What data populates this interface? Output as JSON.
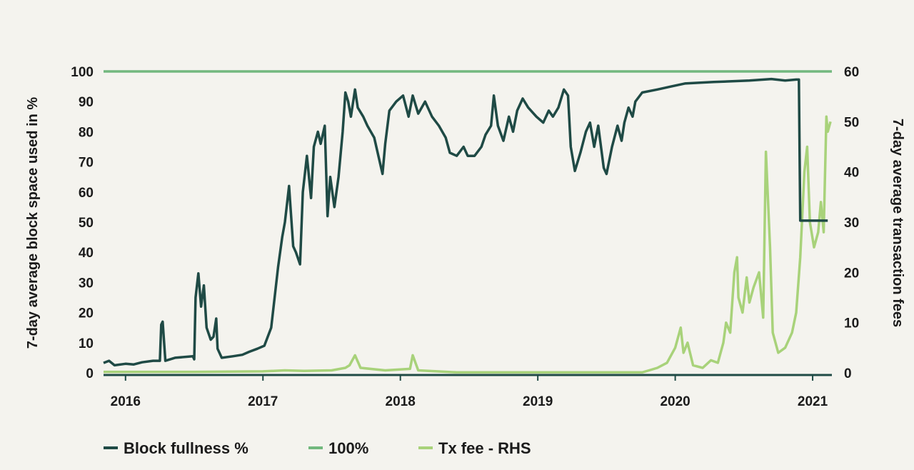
{
  "chart_data": {
    "type": "line",
    "title": "",
    "xlabel": "",
    "ylabel": "7-day average block space used in %",
    "ylabel_right": "7-day average transaction fees",
    "ylim": [
      0,
      100
    ],
    "ylim_right": [
      0,
      60
    ],
    "yticks": [
      "0",
      "10",
      "20",
      "30",
      "40",
      "50",
      "60",
      "70",
      "80",
      "90",
      "100"
    ],
    "yticks_right": [
      "0",
      "10",
      "20",
      "30",
      "40",
      "50",
      "60"
    ],
    "xticks": [
      "2016",
      "2017",
      "2018",
      "2019",
      "2020",
      "2021"
    ],
    "xlim": [
      2015.84,
      2021.14
    ],
    "grid": false,
    "legend_position": "bottom",
    "colors": {
      "block": "#1f4a45",
      "hundred": "#72b87e",
      "fee": "#a8d27a",
      "axis": "#1f4a45"
    },
    "series": [
      {
        "name": "Block fullness %",
        "axis": "left",
        "points": [
          [
            2015.84,
            3.3
          ],
          [
            2015.88,
            4
          ],
          [
            2015.92,
            2.5
          ],
          [
            2016.0,
            3
          ],
          [
            2016.06,
            2.8
          ],
          [
            2016.12,
            3.5
          ],
          [
            2016.2,
            4
          ],
          [
            2016.25,
            4
          ],
          [
            2016.26,
            16
          ],
          [
            2016.27,
            17
          ],
          [
            2016.29,
            4
          ],
          [
            2016.36,
            5
          ],
          [
            2016.49,
            5.5
          ],
          [
            2016.5,
            4.5
          ],
          [
            2016.51,
            25
          ],
          [
            2016.53,
            33
          ],
          [
            2016.55,
            22
          ],
          [
            2016.57,
            29
          ],
          [
            2016.59,
            15
          ],
          [
            2016.62,
            11
          ],
          [
            2016.64,
            12
          ],
          [
            2016.66,
            18
          ],
          [
            2016.67,
            8
          ],
          [
            2016.7,
            5
          ],
          [
            2016.78,
            5.5
          ],
          [
            2016.85,
            6
          ],
          [
            2016.9,
            7
          ],
          [
            2016.96,
            8
          ],
          [
            2017.01,
            9
          ],
          [
            2017.06,
            15
          ],
          [
            2017.11,
            35
          ],
          [
            2017.14,
            45
          ],
          [
            2017.16,
            50
          ],
          [
            2017.19,
            62
          ],
          [
            2017.22,
            42
          ],
          [
            2017.24,
            40
          ],
          [
            2017.27,
            36
          ],
          [
            2017.29,
            60
          ],
          [
            2017.32,
            72
          ],
          [
            2017.35,
            58
          ],
          [
            2017.37,
            75
          ],
          [
            2017.4,
            80
          ],
          [
            2017.42,
            76
          ],
          [
            2017.45,
            82
          ],
          [
            2017.47,
            52
          ],
          [
            2017.49,
            65
          ],
          [
            2017.52,
            55
          ],
          [
            2017.55,
            65
          ],
          [
            2017.58,
            80
          ],
          [
            2017.6,
            93
          ],
          [
            2017.62,
            90
          ],
          [
            2017.64,
            85
          ],
          [
            2017.67,
            94
          ],
          [
            2017.69,
            88
          ],
          [
            2017.73,
            85
          ],
          [
            2017.76,
            82
          ],
          [
            2017.81,
            78
          ],
          [
            2017.87,
            66
          ],
          [
            2017.89,
            76
          ],
          [
            2017.92,
            87
          ],
          [
            2017.97,
            90
          ],
          [
            2018.02,
            92
          ],
          [
            2018.06,
            85
          ],
          [
            2018.09,
            92
          ],
          [
            2018.13,
            86
          ],
          [
            2018.18,
            90
          ],
          [
            2018.23,
            85
          ],
          [
            2018.28,
            82
          ],
          [
            2018.33,
            78
          ],
          [
            2018.36,
            73
          ],
          [
            2018.41,
            72
          ],
          [
            2018.46,
            75
          ],
          [
            2018.49,
            72
          ],
          [
            2018.54,
            72
          ],
          [
            2018.59,
            75
          ],
          [
            2018.62,
            79
          ],
          [
            2018.66,
            82
          ],
          [
            2018.68,
            92
          ],
          [
            2018.71,
            82
          ],
          [
            2018.75,
            77
          ],
          [
            2018.79,
            85
          ],
          [
            2018.82,
            80
          ],
          [
            2018.85,
            87
          ],
          [
            2018.89,
            91
          ],
          [
            2018.93,
            88
          ],
          [
            2018.99,
            85
          ],
          [
            2019.04,
            83
          ],
          [
            2019.08,
            87
          ],
          [
            2019.11,
            85
          ],
          [
            2019.15,
            88
          ],
          [
            2019.19,
            94
          ],
          [
            2019.22,
            92
          ],
          [
            2019.24,
            75
          ],
          [
            2019.27,
            67
          ],
          [
            2019.31,
            73
          ],
          [
            2019.35,
            80
          ],
          [
            2019.38,
            83
          ],
          [
            2019.41,
            75
          ],
          [
            2019.44,
            82
          ],
          [
            2019.48,
            68
          ],
          [
            2019.5,
            66
          ],
          [
            2019.54,
            75
          ],
          [
            2019.58,
            82
          ],
          [
            2019.61,
            77
          ],
          [
            2019.63,
            83
          ],
          [
            2019.66,
            88
          ],
          [
            2019.69,
            85
          ],
          [
            2019.71,
            90
          ],
          [
            2019.76,
            93
          ],
          [
            2019.87,
            94
          ],
          [
            2019.97,
            95
          ],
          [
            2020.07,
            96
          ],
          [
            2020.28,
            96.5
          ],
          [
            2020.54,
            97
          ],
          [
            2020.7,
            97.5
          ],
          [
            2020.8,
            97
          ],
          [
            2020.88,
            97.3
          ],
          [
            2020.9,
            97.3
          ],
          [
            2020.91,
            50.5
          ],
          [
            2021.11,
            50.5
          ]
        ]
      },
      {
        "name": "100%",
        "axis": "left",
        "points": [
          [
            2015.84,
            100
          ],
          [
            2021.14,
            100
          ]
        ]
      },
      {
        "name": "Tx fee - RHS",
        "axis": "right",
        "points": [
          [
            2015.84,
            0.2
          ],
          [
            2016.5,
            0.2
          ],
          [
            2017.0,
            0.3
          ],
          [
            2017.16,
            0.5
          ],
          [
            2017.3,
            0.4
          ],
          [
            2017.5,
            0.5
          ],
          [
            2017.6,
            1
          ],
          [
            2017.63,
            1.5
          ],
          [
            2017.67,
            3.5
          ],
          [
            2017.71,
            1
          ],
          [
            2017.89,
            0.5
          ],
          [
            2018.07,
            0.8
          ],
          [
            2018.09,
            3.5
          ],
          [
            2018.13,
            0.5
          ],
          [
            2018.41,
            0.1
          ],
          [
            2019.0,
            0.1
          ],
          [
            2019.76,
            0.1
          ],
          [
            2019.81,
            0.5
          ],
          [
            2019.87,
            1
          ],
          [
            2019.94,
            2
          ],
          [
            2020.0,
            5
          ],
          [
            2020.04,
            9
          ],
          [
            2020.06,
            4
          ],
          [
            2020.09,
            6
          ],
          [
            2020.13,
            1.5
          ],
          [
            2020.2,
            1
          ],
          [
            2020.26,
            2.5
          ],
          [
            2020.31,
            2
          ],
          [
            2020.35,
            6
          ],
          [
            2020.37,
            10
          ],
          [
            2020.4,
            8
          ],
          [
            2020.43,
            20
          ],
          [
            2020.45,
            23
          ],
          [
            2020.46,
            15
          ],
          [
            2020.49,
            12
          ],
          [
            2020.52,
            19
          ],
          [
            2020.54,
            14
          ],
          [
            2020.57,
            17
          ],
          [
            2020.61,
            20
          ],
          [
            2020.64,
            11
          ],
          [
            2020.66,
            44
          ],
          [
            2020.69,
            25
          ],
          [
            2020.71,
            8
          ],
          [
            2020.75,
            4
          ],
          [
            2020.8,
            5
          ],
          [
            2020.85,
            8
          ],
          [
            2020.88,
            12
          ],
          [
            2020.91,
            23
          ],
          [
            2020.94,
            40
          ],
          [
            2020.96,
            45
          ],
          [
            2020.98,
            30
          ],
          [
            2021.01,
            25
          ],
          [
            2021.04,
            28
          ],
          [
            2021.06,
            34
          ],
          [
            2021.08,
            28
          ],
          [
            2021.1,
            51
          ],
          [
            2021.11,
            48
          ],
          [
            2021.13,
            50
          ]
        ]
      }
    ]
  }
}
